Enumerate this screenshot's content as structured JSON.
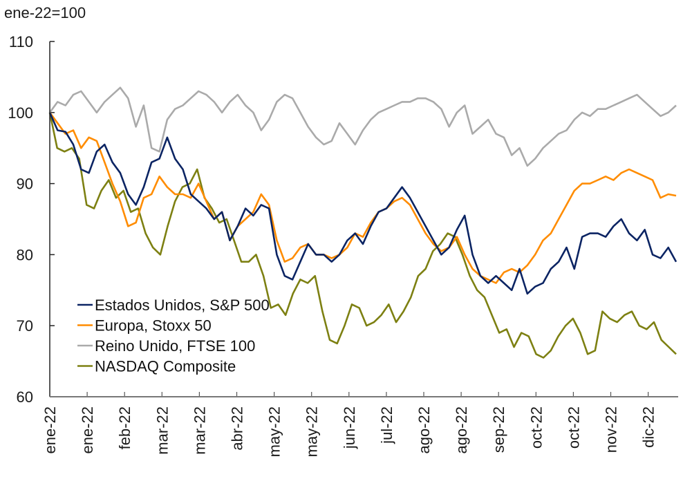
{
  "chart_data": {
    "type": "line",
    "title": "",
    "unit_label": "ene-22=100",
    "xlabel": "",
    "ylabel": "ene-22=100",
    "ylim": [
      60,
      110
    ],
    "yticks": [
      60,
      70,
      80,
      90,
      100,
      110
    ],
    "ytick_labels": [
      "60",
      "70",
      "80",
      "90",
      "100",
      "110"
    ],
    "xtick_labels": [
      "ene-22",
      "ene-22",
      "feb-22",
      "mar-22",
      "mar-22",
      "abr-22",
      "may-22",
      "may-22",
      "jun-22",
      "jul-22",
      "ago-22",
      "ago-22",
      "sep-22",
      "oct-22",
      "oct-22",
      "nov-22",
      "dic-22"
    ],
    "grid": false,
    "legend_position": "bottom-left",
    "series": [
      {
        "name": "Estados Unidos, S&P 500",
        "color": "#0b2463",
        "values": [
          100,
          97.5,
          97.3,
          95.5,
          92,
          91.5,
          94.5,
          95.5,
          93,
          91.5,
          88.5,
          87,
          89.5,
          93,
          93.5,
          96.5,
          93.5,
          92,
          88.5,
          87.5,
          86.5,
          85,
          86,
          82,
          84,
          86.5,
          85.5,
          87,
          86.5,
          80,
          77,
          76.5,
          79,
          81.5,
          80,
          80,
          79,
          80,
          82,
          83,
          81.5,
          84,
          86,
          86.5,
          88,
          89.5,
          88,
          86,
          84,
          82,
          80,
          81,
          83.5,
          85.5,
          80,
          77,
          76,
          77,
          76,
          75,
          78,
          74.5,
          75.5,
          76,
          78,
          79,
          81,
          78,
          82.5,
          83,
          83,
          82.5,
          84,
          85,
          83,
          82,
          83.5,
          80,
          79.5,
          81,
          79
        ]
      },
      {
        "name": "Europa, Stoxx 50",
        "color": "#ff8c00",
        "values": [
          100,
          98.5,
          97,
          97.5,
          95,
          96.5,
          96,
          93,
          90,
          87.5,
          84,
          84.5,
          88,
          88.5,
          91,
          89.5,
          88.5,
          88.5,
          88,
          90,
          87.5,
          85,
          86,
          82,
          84,
          85,
          86,
          88.5,
          87,
          82,
          79,
          79.5,
          81,
          81.5,
          80,
          80,
          79.5,
          80,
          81,
          83,
          82.5,
          84.5,
          86,
          86.5,
          87.5,
          88,
          87,
          85,
          83,
          81.5,
          80.5,
          81,
          82.5,
          80,
          78,
          77,
          76.5,
          76,
          77.5,
          78,
          77.5,
          78.5,
          80,
          82,
          83,
          85,
          87,
          89,
          90,
          90,
          90.5,
          91,
          90.5,
          91.5,
          92,
          91.5,
          91,
          90.5,
          88,
          88.5,
          88.3
        ]
      },
      {
        "name": "Reino Unido, FTSE 100",
        "color": "#aaaaaa",
        "values": [
          100,
          101.5,
          101,
          102.5,
          103,
          101.5,
          100,
          101.5,
          102.5,
          103.5,
          102,
          98,
          101,
          95,
          94.5,
          99,
          100.5,
          101,
          102,
          103,
          102.5,
          101.5,
          100,
          101.5,
          102.5,
          101,
          100,
          97.5,
          99,
          101.5,
          102.5,
          102,
          100,
          98,
          96.5,
          95.5,
          96,
          98.5,
          97,
          95.5,
          97.5,
          99,
          100,
          100.5,
          101,
          101.5,
          101.5,
          102,
          102,
          101.5,
          100.5,
          98,
          100,
          101,
          97,
          98,
          99,
          97,
          96.5,
          94,
          95,
          92.5,
          93.5,
          95,
          96,
          97,
          97.5,
          99,
          100,
          99.5,
          100.5,
          100.5,
          101,
          101.5,
          102,
          102.5,
          101.5,
          100.5,
          99.5,
          100,
          101
        ]
      },
      {
        "name": "NASDAQ Composite",
        "color": "#7d8012",
        "values": [
          100,
          95,
          94.5,
          95,
          93.5,
          87,
          86.5,
          89,
          90.5,
          88,
          89,
          86,
          86.5,
          83,
          81,
          80,
          84,
          87.5,
          89.5,
          90,
          92,
          88,
          86.5,
          84.5,
          85,
          82,
          79,
          79,
          80,
          77,
          72.5,
          73,
          71.5,
          74.5,
          76.5,
          76,
          77,
          72,
          68,
          67.5,
          70,
          73,
          72.5,
          70,
          70.5,
          71.5,
          73,
          70.5,
          72,
          74,
          77,
          78,
          80.5,
          81.5,
          83,
          82.5,
          80,
          77,
          75,
          74,
          71.5,
          69,
          69.5,
          67,
          69,
          68.5,
          66,
          65.5,
          66.5,
          68.5,
          70,
          71,
          69,
          66,
          66.5,
          72,
          71,
          70.5,
          71.5,
          72,
          70,
          69.5,
          70.5,
          68,
          67,
          66
        ]
      }
    ]
  }
}
